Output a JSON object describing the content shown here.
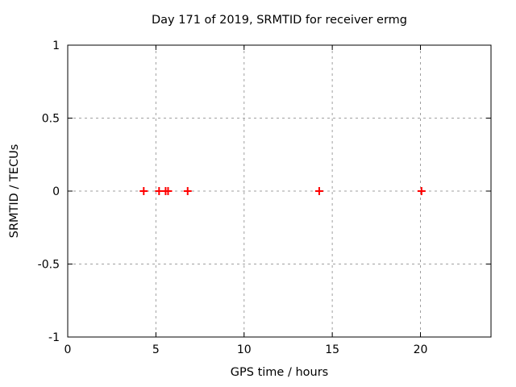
{
  "window": {
    "background": "#ffffff"
  },
  "chart_data": {
    "type": "scatter",
    "title": "Day 171 of 2019, SRMTID for receiver ermg",
    "xlabel": "GPS time / hours",
    "ylabel": "SRMTID / TECUs",
    "xlim": [
      0,
      24
    ],
    "ylim": [
      -1,
      1
    ],
    "xticks": [
      0,
      5,
      10,
      15,
      20
    ],
    "yticks": [
      -1,
      -0.5,
      0,
      0.5,
      1
    ],
    "grid": true,
    "legend": "none",
    "marker": "plus",
    "marker_color": "#ff0000",
    "grid_color": "#a0a0a0",
    "border_color": "#000000",
    "series": [
      {
        "name": "SRMTID",
        "x": [
          4.31,
          5.18,
          5.55,
          5.69,
          6.8,
          14.26,
          20.06
        ],
        "y": [
          0,
          0,
          0,
          0,
          0,
          0,
          0
        ]
      }
    ]
  }
}
